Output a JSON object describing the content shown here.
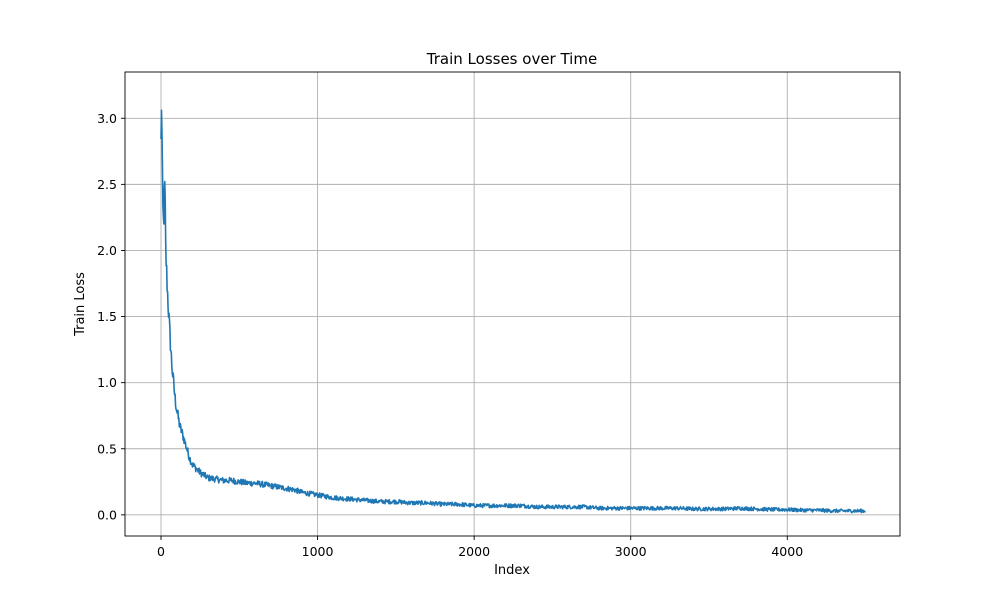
{
  "chart_data": {
    "type": "line",
    "title": "Train Losses over Time",
    "xlabel": "Index",
    "ylabel": "Train Loss",
    "xlim": [
      -230,
      4720
    ],
    "ylim": [
      -0.16,
      3.35
    ],
    "xticks": [
      0,
      1000,
      2000,
      3000,
      4000
    ],
    "yticks": [
      0.0,
      0.5,
      1.0,
      1.5,
      2.0,
      2.5,
      3.0
    ],
    "xtick_labels": [
      "0",
      "1000",
      "2000",
      "3000",
      "4000"
    ],
    "ytick_labels": [
      "0.0",
      "0.5",
      "1.0",
      "1.5",
      "2.0",
      "2.5",
      "3.0"
    ],
    "grid": true,
    "series": [
      {
        "color": "#1f77b4",
        "x": [
          0,
          2,
          5,
          8,
          12,
          16,
          20,
          25,
          30,
          40,
          50,
          60,
          70,
          80,
          90,
          100,
          120,
          140,
          160,
          180,
          200,
          250,
          300,
          350,
          400,
          450,
          500,
          550,
          600,
          650,
          700,
          750,
          800,
          850,
          900,
          1000,
          1100,
          1200,
          1300,
          1400,
          1500,
          1600,
          1700,
          1800,
          1900,
          2000,
          2100,
          2200,
          2300,
          2400,
          2500,
          2600,
          2700,
          2800,
          2900,
          3000,
          3100,
          3200,
          3300,
          3400,
          3500,
          3600,
          3700,
          3800,
          3900,
          4000,
          4100,
          4200,
          4300,
          4400,
          4500
        ],
        "y": [
          2.8,
          3.18,
          3.0,
          2.6,
          2.3,
          2.2,
          2.35,
          2.5,
          2.0,
          1.72,
          1.5,
          1.3,
          1.12,
          1.0,
          0.88,
          0.8,
          0.67,
          0.6,
          0.52,
          0.44,
          0.38,
          0.32,
          0.28,
          0.27,
          0.26,
          0.26,
          0.25,
          0.24,
          0.24,
          0.23,
          0.22,
          0.21,
          0.2,
          0.19,
          0.17,
          0.15,
          0.13,
          0.12,
          0.11,
          0.1,
          0.1,
          0.09,
          0.09,
          0.08,
          0.08,
          0.07,
          0.07,
          0.07,
          0.07,
          0.06,
          0.06,
          0.06,
          0.06,
          0.05,
          0.05,
          0.05,
          0.05,
          0.05,
          0.05,
          0.045,
          0.045,
          0.045,
          0.05,
          0.045,
          0.04,
          0.04,
          0.035,
          0.035,
          0.03,
          0.03,
          0.03
        ]
      }
    ]
  }
}
